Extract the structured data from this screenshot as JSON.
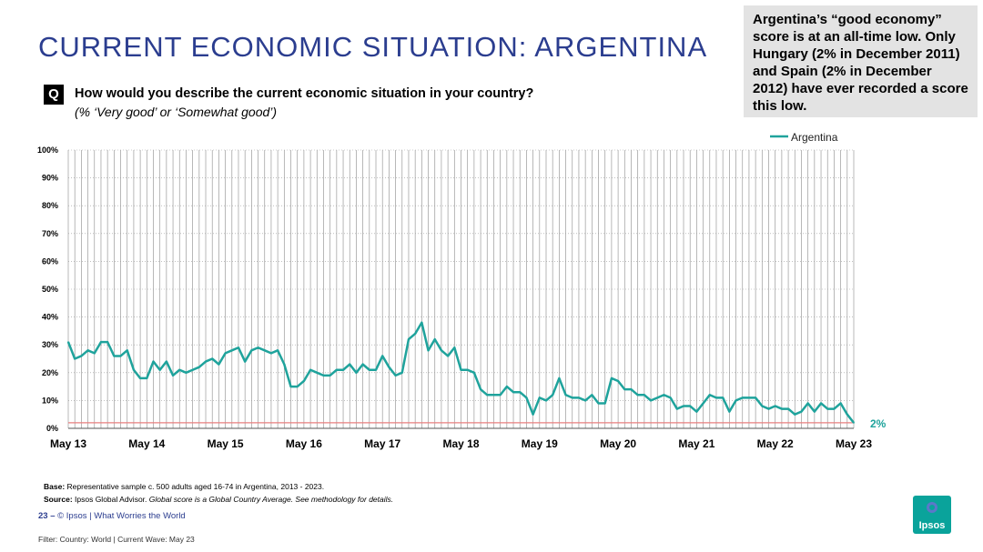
{
  "title": "CURRENT ECONOMIC SITUATION: ARGENTINA",
  "callout": "Argentina’s “good economy” score is at an all-time low. Only Hungary (2% in December 2011) and Spain (2% in December 2012) have ever recorded a score this low.",
  "question": {
    "badge": "Q",
    "text": "How would you describe the current economic situation in your country?",
    "sub": "(% ‘Very good’ or ‘Somewhat good’)"
  },
  "footer": {
    "base_label": "Base:",
    "base_text": " Representative sample c. 500 adults aged 16-74 in Argentina, 2013 - 2023.",
    "source_label": "Source:",
    "source_text": " Ipsos Global Advisor. ",
    "source_italic": "Global score is a Global Country Average. See methodology for details.",
    "page": "23 –",
    "credit": "© Ipsos | What Worries the World",
    "filter": "Filter: Country: World | Current Wave: May 23",
    "logo": "Ipsos"
  },
  "colors": {
    "title": "#2b3d8f",
    "series": "#1fa39c",
    "reference_line": "#e87f7f",
    "callout_bg": "#e3e3e3"
  },
  "chart_data": {
    "type": "line",
    "ylim": [
      0,
      100
    ],
    "y_ticks": [
      "0%",
      "10%",
      "20%",
      "30%",
      "40%",
      "50%",
      "60%",
      "70%",
      "80%",
      "90%",
      "100%"
    ],
    "x_tick_labels": [
      "May 13",
      "May 14",
      "May 15",
      "May 16",
      "May 17",
      "May 18",
      "May 19",
      "May 20",
      "May 21",
      "May 22",
      "May 23"
    ],
    "grid": "vertical lines at every wave",
    "legend_position": "top-right",
    "end_label": "2%",
    "reference_line_value": 2,
    "series": [
      {
        "name": "Argentina",
        "values": [
          31,
          25,
          26,
          28,
          27,
          31,
          31,
          26,
          26,
          28,
          21,
          18,
          18,
          24,
          21,
          24,
          19,
          21,
          20,
          21,
          22,
          24,
          25,
          23,
          27,
          28,
          29,
          24,
          28,
          29,
          28,
          27,
          28,
          23,
          15,
          15,
          17,
          21,
          20,
          19,
          19,
          21,
          21,
          23,
          20,
          23,
          21,
          21,
          26,
          22,
          19,
          20,
          32,
          34,
          38,
          28,
          32,
          28,
          26,
          29,
          21,
          21,
          20,
          14,
          12,
          12,
          12,
          15,
          13,
          13,
          11,
          5,
          11,
          10,
          12,
          18,
          12,
          11,
          11,
          10,
          12,
          9,
          9,
          18,
          17,
          14,
          14,
          12,
          12,
          10,
          11,
          12,
          11,
          7,
          8,
          8,
          6,
          9,
          12,
          11,
          11,
          6,
          10,
          11,
          11,
          11,
          8,
          7,
          8,
          7,
          7,
          5,
          6,
          9,
          6,
          9,
          7,
          7,
          9,
          5,
          2
        ]
      }
    ]
  }
}
